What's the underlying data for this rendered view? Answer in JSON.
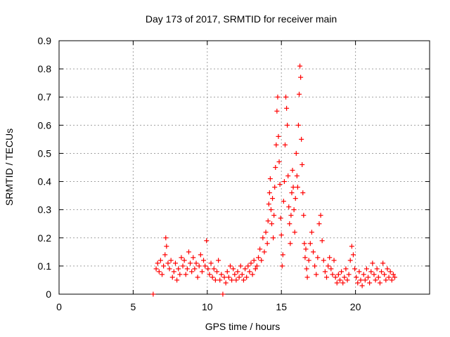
{
  "chart_data": {
    "type": "scatter",
    "title": "Day 173 of 2017, SRMTID for receiver main",
    "xlabel": "GPS time / hours",
    "ylabel": "SRMTID / TECUs",
    "xlim": [
      0,
      25
    ],
    "ylim": [
      0,
      0.9
    ],
    "x_ticks": [
      0,
      5,
      10,
      15,
      20
    ],
    "y_ticks": [
      0,
      0.1,
      0.2,
      0.3,
      0.4,
      0.5,
      0.6,
      0.7,
      0.8,
      0.9
    ],
    "x_tick_labels": [
      "0",
      "5",
      "10",
      "15",
      "20"
    ],
    "y_tick_labels": [
      "0",
      "0.1",
      "0.2",
      "0.3",
      "0.4",
      "0.5",
      "0.6",
      "0.7",
      "0.8",
      "0.9"
    ],
    "grid": true,
    "marker": "+",
    "color": "#ff0000",
    "series": [
      {
        "name": "SRMTID",
        "points": [
          [
            6.35,
            0.0
          ],
          [
            6.55,
            0.09
          ],
          [
            6.65,
            0.11
          ],
          [
            6.75,
            0.08
          ],
          [
            6.85,
            0.12
          ],
          [
            6.95,
            0.07
          ],
          [
            7.05,
            0.1
          ],
          [
            7.15,
            0.14
          ],
          [
            7.2,
            0.2
          ],
          [
            7.25,
            0.17
          ],
          [
            7.35,
            0.11
          ],
          [
            7.45,
            0.09
          ],
          [
            7.55,
            0.12
          ],
          [
            7.65,
            0.06
          ],
          [
            7.75,
            0.08
          ],
          [
            7.85,
            0.11
          ],
          [
            7.95,
            0.05
          ],
          [
            8.05,
            0.09
          ],
          [
            8.15,
            0.07
          ],
          [
            8.25,
            0.13
          ],
          [
            8.35,
            0.1
          ],
          [
            8.45,
            0.12
          ],
          [
            8.55,
            0.07
          ],
          [
            8.65,
            0.09
          ],
          [
            8.75,
            0.15
          ],
          [
            8.85,
            0.11
          ],
          [
            8.95,
            0.08
          ],
          [
            9.05,
            0.13
          ],
          [
            9.15,
            0.09
          ],
          [
            9.25,
            0.11
          ],
          [
            9.35,
            0.06
          ],
          [
            9.45,
            0.1
          ],
          [
            9.55,
            0.14
          ],
          [
            9.65,
            0.08
          ],
          [
            9.75,
            0.12
          ],
          [
            9.85,
            0.1
          ],
          [
            9.95,
            0.19
          ],
          [
            10.05,
            0.09
          ],
          [
            10.15,
            0.07
          ],
          [
            10.25,
            0.11
          ],
          [
            10.35,
            0.06
          ],
          [
            10.45,
            0.09
          ],
          [
            10.55,
            0.05
          ],
          [
            10.65,
            0.08
          ],
          [
            10.75,
            0.12
          ],
          [
            10.85,
            0.05
          ],
          [
            10.95,
            0.07
          ],
          [
            11.05,
            0.0
          ],
          [
            11.15,
            0.06
          ],
          [
            11.25,
            0.04
          ],
          [
            11.35,
            0.08
          ],
          [
            11.45,
            0.06
          ],
          [
            11.55,
            0.1
          ],
          [
            11.65,
            0.05
          ],
          [
            11.75,
            0.09
          ],
          [
            11.85,
            0.07
          ],
          [
            11.95,
            0.05
          ],
          [
            12.05,
            0.08
          ],
          [
            12.15,
            0.06
          ],
          [
            12.25,
            0.1
          ],
          [
            12.35,
            0.07
          ],
          [
            12.45,
            0.05
          ],
          [
            12.55,
            0.09
          ],
          [
            12.65,
            0.06
          ],
          [
            12.75,
            0.1
          ],
          [
            12.85,
            0.08
          ],
          [
            12.95,
            0.11
          ],
          [
            13.05,
            0.07
          ],
          [
            13.15,
            0.12
          ],
          [
            13.25,
            0.09
          ],
          [
            13.35,
            0.1
          ],
          [
            13.45,
            0.13
          ],
          [
            13.55,
            0.16
          ],
          [
            13.65,
            0.12
          ],
          [
            13.75,
            0.2
          ],
          [
            13.85,
            0.15
          ],
          [
            13.95,
            0.22
          ],
          [
            14.05,
            0.18
          ],
          [
            14.1,
            0.26
          ],
          [
            14.15,
            0.32
          ],
          [
            14.2,
            0.36
          ],
          [
            14.25,
            0.41
          ],
          [
            14.3,
            0.3
          ],
          [
            14.35,
            0.25
          ],
          [
            14.4,
            0.34
          ],
          [
            14.45,
            0.2
          ],
          [
            14.5,
            0.28
          ],
          [
            14.55,
            0.38
          ],
          [
            14.6,
            0.45
          ],
          [
            14.65,
            0.53
          ],
          [
            14.7,
            0.65
          ],
          [
            14.75,
            0.7
          ],
          [
            14.8,
            0.56
          ],
          [
            14.85,
            0.47
          ],
          [
            14.9,
            0.39
          ],
          [
            14.95,
            0.27
          ],
          [
            15.0,
            0.21
          ],
          [
            15.05,
            0.1
          ],
          [
            15.1,
            0.14
          ],
          [
            15.15,
            0.33
          ],
          [
            15.2,
            0.4
          ],
          [
            15.25,
            0.53
          ],
          [
            15.3,
            0.7
          ],
          [
            15.35,
            0.66
          ],
          [
            15.4,
            0.6
          ],
          [
            15.45,
            0.42
          ],
          [
            15.5,
            0.31
          ],
          [
            15.55,
            0.25
          ],
          [
            15.6,
            0.18
          ],
          [
            15.65,
            0.28
          ],
          [
            15.7,
            0.36
          ],
          [
            15.75,
            0.44
          ],
          [
            15.8,
            0.38
          ],
          [
            15.85,
            0.3
          ],
          [
            15.9,
            0.22
          ],
          [
            15.95,
            0.34
          ],
          [
            16.0,
            0.5
          ],
          [
            16.05,
            0.42
          ],
          [
            16.1,
            0.38
          ],
          [
            16.15,
            0.6
          ],
          [
            16.2,
            0.71
          ],
          [
            16.25,
            0.81
          ],
          [
            16.3,
            0.77
          ],
          [
            16.35,
            0.55
          ],
          [
            16.4,
            0.46
          ],
          [
            16.45,
            0.36
          ],
          [
            16.5,
            0.28
          ],
          [
            16.55,
            0.18
          ],
          [
            16.6,
            0.13
          ],
          [
            16.65,
            0.16
          ],
          [
            16.7,
            0.09
          ],
          [
            16.75,
            0.06
          ],
          [
            16.85,
            0.12
          ],
          [
            16.95,
            0.18
          ],
          [
            17.05,
            0.22
          ],
          [
            17.15,
            0.15
          ],
          [
            17.25,
            0.1
          ],
          [
            17.35,
            0.07
          ],
          [
            17.45,
            0.13
          ],
          [
            17.55,
            0.25
          ],
          [
            17.65,
            0.28
          ],
          [
            17.75,
            0.19
          ],
          [
            17.85,
            0.12
          ],
          [
            17.95,
            0.08
          ],
          [
            18.05,
            0.06
          ],
          [
            18.15,
            0.1
          ],
          [
            18.25,
            0.13
          ],
          [
            18.35,
            0.09
          ],
          [
            18.45,
            0.07
          ],
          [
            18.55,
            0.12
          ],
          [
            18.65,
            0.06
          ],
          [
            18.75,
            0.04
          ],
          [
            18.85,
            0.07
          ],
          [
            18.95,
            0.05
          ],
          [
            19.05,
            0.08
          ],
          [
            19.15,
            0.04
          ],
          [
            19.25,
            0.06
          ],
          [
            19.35,
            0.09
          ],
          [
            19.45,
            0.05
          ],
          [
            19.55,
            0.07
          ],
          [
            19.65,
            0.12
          ],
          [
            19.75,
            0.17
          ],
          [
            19.85,
            0.14
          ],
          [
            19.95,
            0.09
          ],
          [
            20.05,
            0.06
          ],
          [
            20.15,
            0.04
          ],
          [
            20.25,
            0.08
          ],
          [
            20.35,
            0.05
          ],
          [
            20.45,
            0.03
          ],
          [
            20.55,
            0.07
          ],
          [
            20.65,
            0.05
          ],
          [
            20.75,
            0.09
          ],
          [
            20.85,
            0.06
          ],
          [
            20.95,
            0.04
          ],
          [
            21.05,
            0.08
          ],
          [
            21.15,
            0.11
          ],
          [
            21.25,
            0.07
          ],
          [
            21.35,
            0.05
          ],
          [
            21.45,
            0.09
          ],
          [
            21.55,
            0.06
          ],
          [
            21.65,
            0.04
          ],
          [
            21.75,
            0.08
          ],
          [
            21.85,
            0.11
          ],
          [
            21.95,
            0.07
          ],
          [
            22.05,
            0.05
          ],
          [
            22.15,
            0.09
          ],
          [
            22.25,
            0.06
          ],
          [
            22.35,
            0.08
          ],
          [
            22.45,
            0.05
          ],
          [
            22.55,
            0.07
          ],
          [
            22.65,
            0.06
          ]
        ]
      }
    ]
  }
}
